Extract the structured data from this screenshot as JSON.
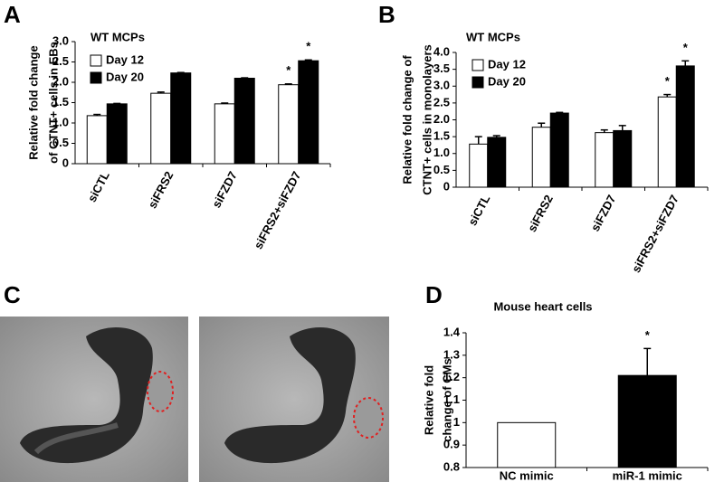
{
  "chart_data": [
    {
      "type": "bar",
      "panel_label": "A",
      "title": "WT MCPs",
      "ylabel": [
        "Relative fold change",
        "of CTNT+ cells in EBs"
      ],
      "categories": [
        "siCTL",
        "siFRS2",
        "siFZD7",
        "siFRS2+siFZD7"
      ],
      "series": [
        {
          "name": "Day 12",
          "color": "#ffffff",
          "values": [
            1.18,
            1.73,
            1.47,
            1.94
          ],
          "errors": [
            0.03,
            0.03,
            0.02,
            0.02
          ]
        },
        {
          "name": "Day 20",
          "color": "#000000",
          "values": [
            1.47,
            2.23,
            2.1,
            2.53
          ],
          "errors": [
            0.01,
            0.01,
            0.01,
            0.02
          ]
        }
      ],
      "annotations": [
        {
          "text": "*",
          "x": "siFRS2+siFZD7",
          "series": "Day 12"
        },
        {
          "text": "*",
          "x": "siFRS2+siFZD7",
          "series": "Day 20"
        }
      ],
      "ylim": [
        0,
        3
      ],
      "yticks": [
        0,
        0.5,
        {
          "value": 1,
          "label": "1.0"
        },
        1.5,
        {
          "value": 2,
          "label": "2.0"
        },
        2.5,
        {
          "value": 3,
          "label": "3.0"
        }
      ]
    },
    {
      "type": "bar",
      "panel_label": "B",
      "title": "WT MCPs",
      "ylabel": [
        "Relative fold change of",
        "CTNT+ cells in monolayers"
      ],
      "categories": [
        "siCTL",
        "siFRS2",
        "siFZD7",
        "siFRS2+siFZD7"
      ],
      "series": [
        {
          "name": "Day 12",
          "color": "#ffffff",
          "values": [
            1.28,
            1.78,
            1.62,
            2.68
          ],
          "errors": [
            0.22,
            0.12,
            0.08,
            0.07
          ]
        },
        {
          "name": "Day 20",
          "color": "#000000",
          "values": [
            1.48,
            2.2,
            1.68,
            3.6
          ],
          "errors": [
            0.05,
            0.02,
            0.15,
            0.15
          ]
        }
      ],
      "annotations": [
        {
          "text": "*",
          "x": "siFRS2+siFZD7",
          "series": "Day 12"
        },
        {
          "text": "*",
          "x": "siFRS2+siFZD7",
          "series": "Day 20"
        }
      ],
      "ylim": [
        0,
        4
      ],
      "yticks": [
        0,
        0.5,
        {
          "value": 1,
          "label": "1.0"
        },
        1.5,
        {
          "value": 2,
          "label": "2.0"
        },
        2.5,
        {
          "value": 3,
          "label": "3.0"
        },
        3.5,
        {
          "value": 4,
          "label": "4.0"
        }
      ]
    },
    {
      "type": "bar",
      "panel_label": "D",
      "title": "Mouse heart cells",
      "ylabel": [
        "Relative fold",
        "change of CMs"
      ],
      "categories": [
        "NC mimic",
        "miR-1 mimic"
      ],
      "series": [
        {
          "colors": [
            "#ffffff",
            "#000000"
          ],
          "values": [
            1,
            1.21
          ],
          "errors": [
            null,
            0.12
          ]
        }
      ],
      "annotations": [
        {
          "text": "*",
          "x": "miR-1 mimic"
        }
      ],
      "ylim": [
        0.8,
        1.4
      ],
      "yticks": [
        0.8,
        0.9,
        1,
        1.1,
        1.2,
        1.3,
        1.4
      ]
    }
  ],
  "image_panel": {
    "label": "C"
  }
}
